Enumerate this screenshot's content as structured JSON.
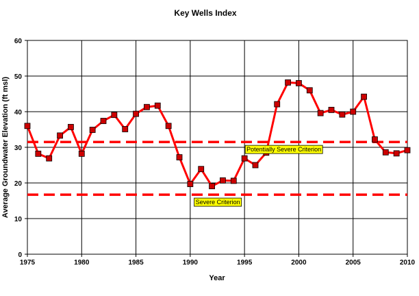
{
  "chart_data": {
    "type": "line",
    "title": "Key Wells Index",
    "xlabel": "Year",
    "ylabel": "Average Groundwater Elevation (ft msl)",
    "xlim": [
      1975,
      2010
    ],
    "ylim": [
      0,
      60
    ],
    "x_ticks": [
      1975,
      1980,
      1985,
      1990,
      1995,
      2000,
      2005,
      2010
    ],
    "y_ticks": [
      0,
      10,
      20,
      30,
      40,
      50,
      60
    ],
    "grid": "vertical and horizontal major gridlines",
    "legend": "none",
    "series": [
      {
        "color": "#ff0000",
        "marker_color": "#cc0000",
        "x": [
          1975,
          1976,
          1977,
          1978,
          1979,
          1980,
          1981,
          1982,
          1983,
          1984,
          1985,
          1986,
          1987,
          1988,
          1989,
          1990,
          1991,
          1992,
          1993,
          1994,
          1995,
          1996,
          1997,
          1998,
          1999,
          2000,
          2001,
          2002,
          2003,
          2004,
          2005,
          2006,
          2007,
          2008,
          2009,
          2010
        ],
        "y": [
          36.0,
          28.2,
          26.9,
          33.3,
          35.7,
          28.2,
          34.9,
          37.4,
          39.1,
          35.1,
          39.4,
          41.3,
          41.7,
          36.0,
          27.2,
          19.7,
          23.9,
          19.1,
          20.7,
          20.6,
          26.9,
          25.0,
          28.5,
          42.1,
          48.2,
          48.0,
          46.0,
          39.6,
          40.5,
          39.2,
          40.0,
          44.2,
          32.2,
          28.6,
          28.3,
          29.2
        ]
      }
    ],
    "reference_lines": [
      {
        "label": "Potentially Severe Criterion",
        "y": 31.5,
        "color": "#ff0000",
        "style": "dashed"
      },
      {
        "label": "Severe Criterion",
        "y": 16.7,
        "color": "#ff0000",
        "style": "dashed"
      }
    ],
    "annotations": [
      {
        "text": "Potentially Severe Criterion",
        "x": 1995,
        "y": 29.4,
        "background": "#ffff00"
      },
      {
        "text": "Severe Criterion",
        "x": 1990.3,
        "y": 14.6,
        "background": "#ffff00"
      }
    ]
  }
}
